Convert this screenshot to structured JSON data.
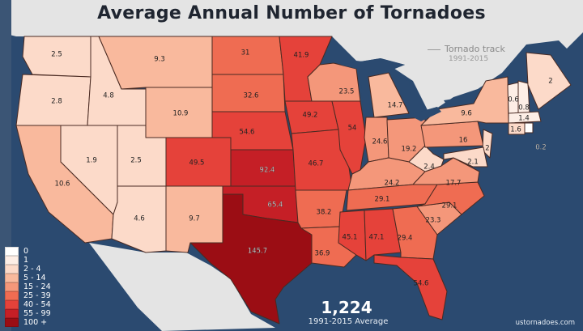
{
  "title": "Average Annual Number of Tornadoes",
  "track_legend": {
    "label": "Tornado track",
    "years": "1991-2015"
  },
  "summary": {
    "total": "1,224",
    "caption": "1991-2015 Average"
  },
  "credit": "ustornadoes.com",
  "legend": [
    {
      "label": "0",
      "color": "#ffffff"
    },
    {
      "label": "1",
      "color": "#fdeee6"
    },
    {
      "label": "2 - 4",
      "color": "#fcdac9"
    },
    {
      "label": "5 - 14",
      "color": "#f9b99d"
    },
    {
      "label": "15 - 24",
      "color": "#f4977a"
    },
    {
      "label": "25 - 39",
      "color": "#ef6c52"
    },
    {
      "label": "40 - 54",
      "color": "#e5423a"
    },
    {
      "label": "55 - 99",
      "color": "#c51f26"
    },
    {
      "label": "100 +",
      "color": "#9b0d14"
    }
  ],
  "colors": {
    "ocean": "#2b4a70",
    "land": "#e4e4e4",
    "border": "#4a2a22"
  },
  "state_values": {
    "WA": "2.5",
    "OR": "2.8",
    "CA": "10.6",
    "NV": "1.9",
    "ID": "4.8",
    "MT": "9.3",
    "WY": "10.9",
    "UT": "2.5",
    "CO": "49.5",
    "AZ": "4.6",
    "NM": "9.7",
    "ND": "31",
    "SD": "32.6",
    "NE": "54.6",
    "KS": "92.4",
    "OK": "65.4",
    "TX": "145.7",
    "MN": "41.9",
    "IA": "49.2",
    "MO": "46.7",
    "AR": "38.2",
    "LA": "36.9",
    "WI": "23.5",
    "IL": "54",
    "MI": "14.7",
    "IN": "24.6",
    "OH": "19.2",
    "KY": "24.2",
    "TN": "29.1",
    "MS": "45.1",
    "AL": "47.1",
    "GA": "29.4",
    "FL": "54.6",
    "SC": "23.3",
    "NC": "29.1",
    "VA": "17.7",
    "WV": "2.4",
    "PA": "16",
    "NY": "9.6",
    "NJ": "2",
    "MD": "2.1",
    "VT": "0.6",
    "NH": "0.8",
    "ME": "2",
    "MA": "1.4",
    "CT": "1.6",
    "RI": "0.2"
  }
}
